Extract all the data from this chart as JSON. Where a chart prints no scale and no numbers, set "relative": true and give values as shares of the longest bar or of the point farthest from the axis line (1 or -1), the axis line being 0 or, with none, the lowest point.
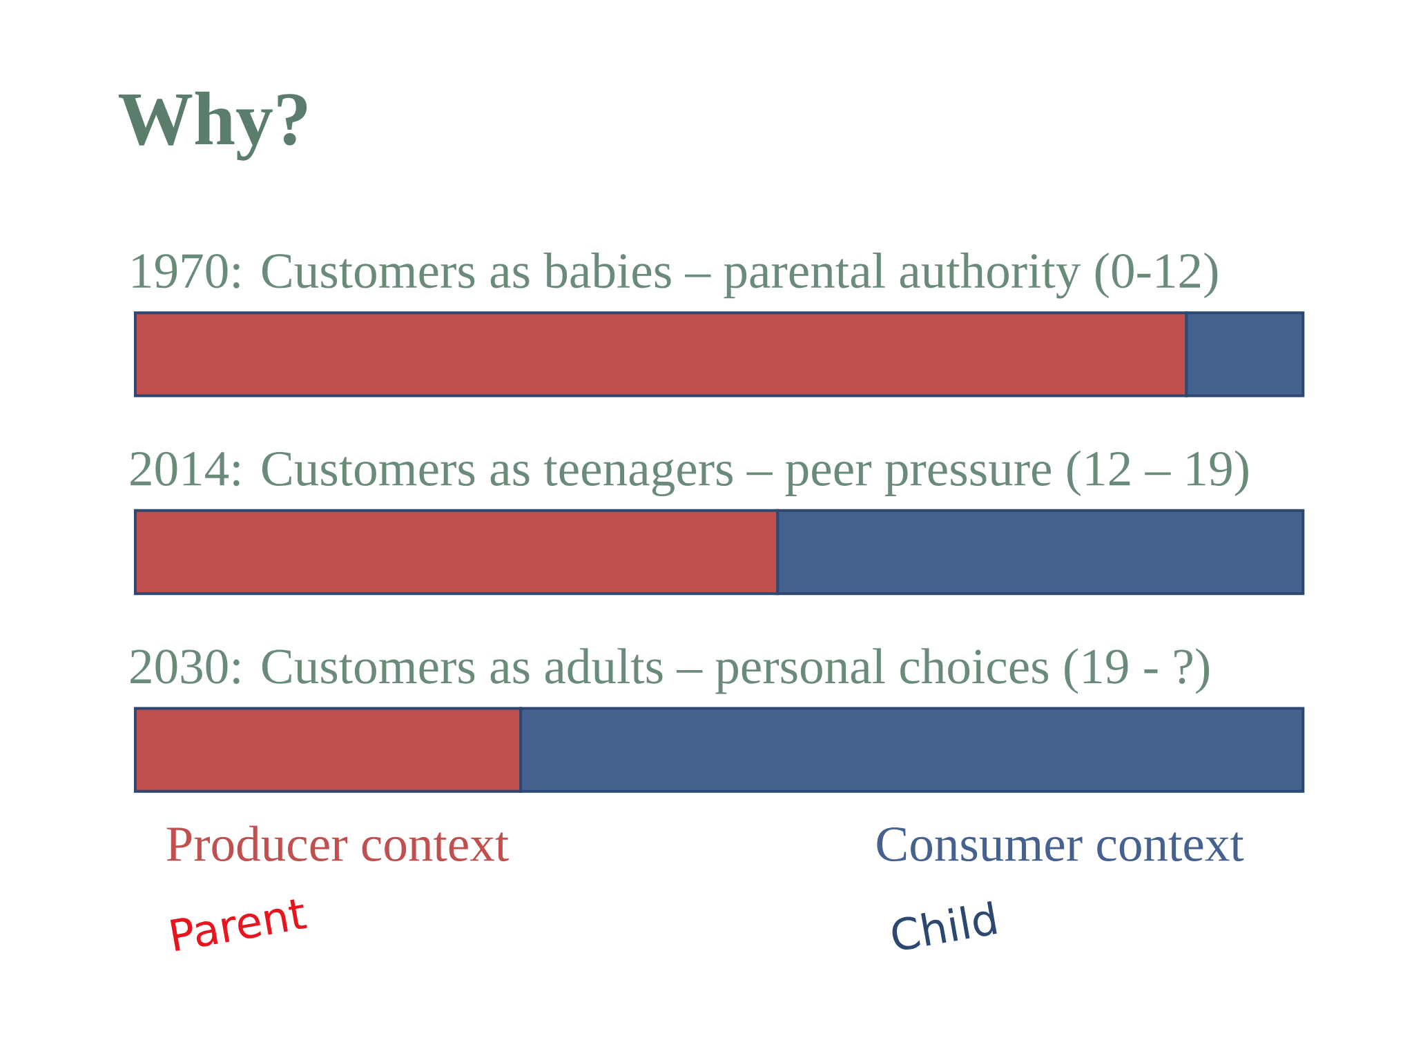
{
  "chart_data": {
    "type": "bar",
    "orientation": "horizontal",
    "stacked": true,
    "relative": true,
    "title": "Why?",
    "categories": [
      "1970: Customers as babies – parental authority (0-12)",
      "2014: Customers as teenagers – peer pressure (12 – 19)",
      "2030: Customers as adults – personal choices (19 - ?)"
    ],
    "series": [
      {
        "name": "Producer context",
        "color": "#c0504d",
        "values": [
          0.9,
          0.55,
          0.33
        ]
      },
      {
        "name": "Consumer context",
        "color": "#44618f",
        "values": [
          0.1,
          0.45,
          0.67
        ]
      }
    ],
    "legend": "bottom",
    "annotations": [
      "Parent",
      "Child"
    ]
  }
}
